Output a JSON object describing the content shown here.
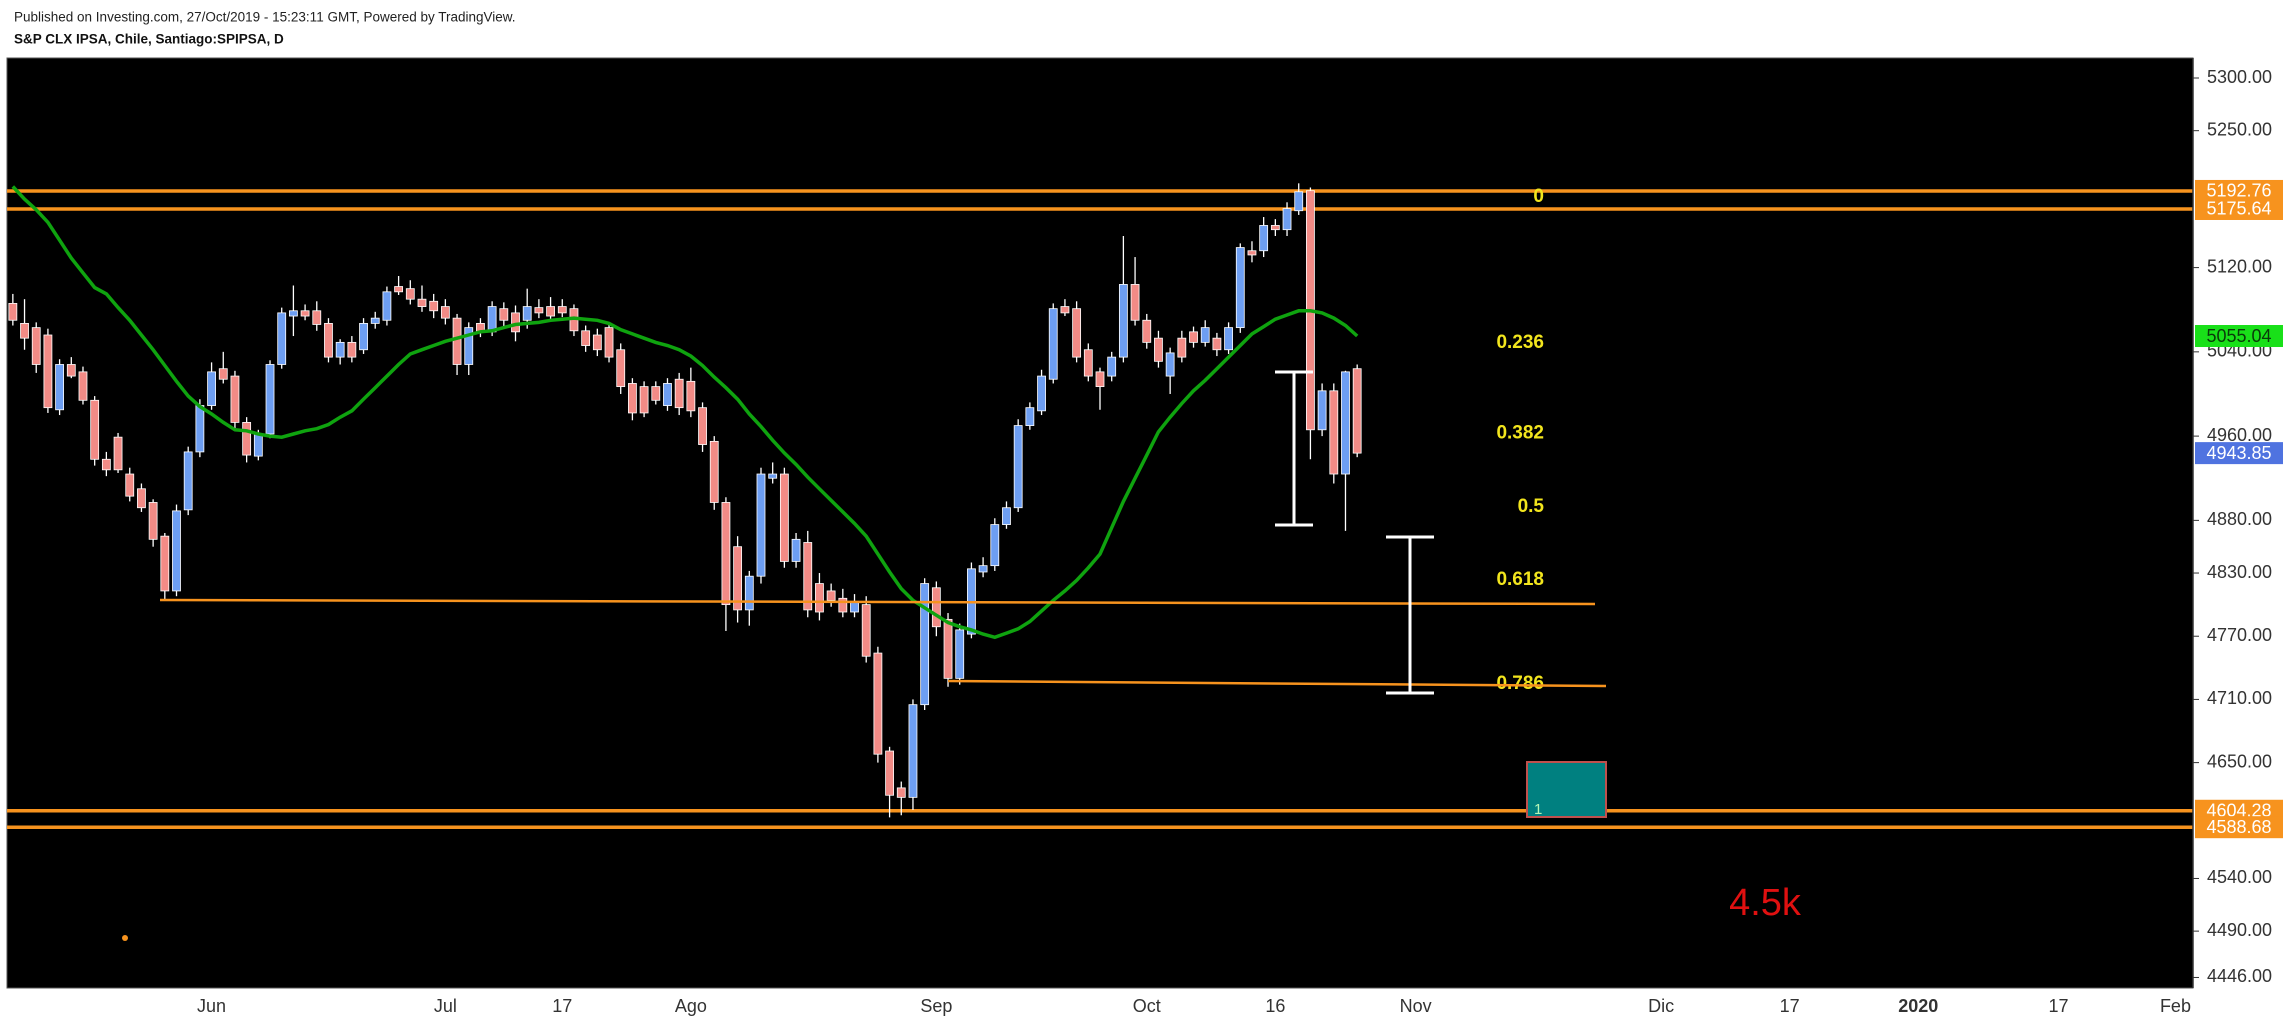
{
  "header": {
    "published": "Published on Investing.com, 27/Oct/2019 - 15:23:11 GMT, Powered by TradingView.",
    "symbol": "S&P CLX IPSA, Chile, Santiago:SPIPSA, D"
  },
  "chart_data": {
    "type": "candlestick",
    "ylim": [
      4436,
      5319
    ],
    "yticks": [
      {
        "value": 5300,
        "label": "5300.00"
      },
      {
        "value": 5250,
        "label": "5250.00"
      },
      {
        "value": 5120,
        "label": "5120.00"
      },
      {
        "value": 5040,
        "label": "5040.00"
      },
      {
        "value": 4960,
        "label": "4960.00"
      },
      {
        "value": 4880,
        "label": "4880.00"
      },
      {
        "value": 4830,
        "label": "4830.00"
      },
      {
        "value": 4770,
        "label": "4770.00"
      },
      {
        "value": 4710,
        "label": "4710.00"
      },
      {
        "value": 4650,
        "label": "4650.00"
      },
      {
        "value": 4540,
        "label": "4540.00"
      },
      {
        "value": 4490,
        "label": "4490.00"
      },
      {
        "value": 4446,
        "label": "4446.00"
      }
    ],
    "up_color": "#6d9ef2",
    "down_color": "#f28b86",
    "sma_color": "#0fa30f",
    "level_color": "#f7931e",
    "fib_color": "#f2e51d",
    "categories": [
      null,
      null,
      null,
      null,
      null,
      null,
      null,
      null,
      null,
      null,
      null,
      null,
      null,
      null,
      null,
      null,
      null,
      "Jun",
      null,
      null,
      null,
      null,
      null,
      null,
      null,
      null,
      null,
      null,
      null,
      null,
      null,
      null,
      null,
      null,
      null,
      null,
      null,
      "Jul",
      null,
      null,
      null,
      null,
      null,
      null,
      null,
      null,
      null,
      "17",
      null,
      null,
      null,
      null,
      null,
      null,
      null,
      null,
      null,
      null,
      "Ago",
      null,
      null,
      null,
      null,
      null,
      null,
      null,
      null,
      null,
      null,
      null,
      null,
      null,
      null,
      null,
      null,
      null,
      null,
      null,
      null,
      "Sep",
      null,
      null,
      null,
      null,
      null,
      null,
      null,
      null,
      null,
      null,
      null,
      null,
      null,
      null,
      null,
      null,
      null,
      "Oct",
      null,
      null,
      null,
      null,
      null,
      null,
      null,
      null,
      null,
      null,
      "16",
      null,
      null,
      null,
      null,
      null,
      null,
      null,
      null,
      null,
      null,
      null,
      "Nov",
      null,
      null,
      null,
      null,
      null,
      null,
      null,
      null,
      null,
      null,
      null,
      null,
      null,
      null,
      null,
      null,
      null,
      null,
      null,
      null,
      "Dic",
      null,
      null,
      null,
      null,
      null,
      null,
      null,
      null,
      null,
      null,
      "17",
      null,
      null,
      null,
      null,
      null,
      null,
      null,
      null,
      null,
      null,
      "2020",
      null,
      null,
      null,
      null,
      null,
      null,
      null,
      null,
      null,
      null,
      null,
      "17",
      null,
      null,
      null,
      null,
      null,
      null,
      null,
      null,
      null,
      "Feb",
      null
    ],
    "ohlc": [
      [
        5086,
        5095,
        5065,
        5070
      ],
      [
        5067,
        5090,
        5042,
        5053
      ],
      [
        5063,
        5068,
        5020,
        5028
      ],
      [
        5056,
        5062,
        4982,
        4987
      ],
      [
        4985,
        5033,
        4980,
        5028
      ],
      [
        5028,
        5035,
        5015,
        5017
      ],
      [
        5021,
        5026,
        4990,
        4994
      ],
      [
        4994,
        4998,
        4932,
        4938
      ],
      [
        4938,
        4945,
        4922,
        4928
      ],
      [
        4959,
        4963,
        4925,
        4928
      ],
      [
        4924,
        4930,
        4898,
        4903
      ],
      [
        4910,
        4915,
        4888,
        4892
      ],
      [
        4897,
        4900,
        4855,
        4862
      ],
      [
        4865,
        4868,
        4805,
        4813
      ],
      [
        4813,
        4895,
        4808,
        4889
      ],
      [
        4890,
        4950,
        4885,
        4945
      ],
      [
        4945,
        4995,
        4940,
        4989
      ],
      [
        4989,
        5030,
        4985,
        5021
      ],
      [
        5024,
        5040,
        5010,
        5014
      ],
      [
        5017,
        5022,
        4965,
        4973
      ],
      [
        4973,
        4978,
        4935,
        4942
      ],
      [
        4941,
        4966,
        4937,
        4962
      ],
      [
        4962,
        5032,
        4958,
        5028
      ],
      [
        5028,
        5082,
        5024,
        5077
      ],
      [
        5074,
        5103,
        5055,
        5079
      ],
      [
        5079,
        5085,
        5070,
        5074
      ],
      [
        5079,
        5088,
        5060,
        5066
      ],
      [
        5067,
        5072,
        5030,
        5035
      ],
      [
        5035,
        5052,
        5028,
        5049
      ],
      [
        5049,
        5055,
        5030,
        5035
      ],
      [
        5042,
        5072,
        5038,
        5067
      ],
      [
        5067,
        5078,
        5062,
        5072
      ],
      [
        5070,
        5102,
        5065,
        5097
      ],
      [
        5102,
        5112,
        5094,
        5097
      ],
      [
        5100,
        5108,
        5085,
        5090
      ],
      [
        5090,
        5103,
        5078,
        5083
      ],
      [
        5088,
        5095,
        5072,
        5079
      ],
      [
        5083,
        5090,
        5066,
        5072
      ],
      [
        5072,
        5076,
        5018,
        5028
      ],
      [
        5028,
        5068,
        5018,
        5063
      ],
      [
        5067,
        5072,
        5054,
        5059
      ],
      [
        5059,
        5088,
        5055,
        5083
      ],
      [
        5081,
        5087,
        5064,
        5070
      ],
      [
        5077,
        5084,
        5050,
        5059
      ],
      [
        5070,
        5100,
        5062,
        5083
      ],
      [
        5082,
        5090,
        5072,
        5077
      ],
      [
        5083,
        5092,
        5070,
        5074
      ],
      [
        5083,
        5090,
        5073,
        5077
      ],
      [
        5081,
        5085,
        5055,
        5060
      ],
      [
        5060,
        5065,
        5040,
        5046
      ],
      [
        5056,
        5062,
        5036,
        5042
      ],
      [
        5063,
        5068,
        5030,
        5035
      ],
      [
        5042,
        5048,
        5000,
        5007
      ],
      [
        5010,
        5015,
        4975,
        4982
      ],
      [
        5007,
        5012,
        4978,
        4982
      ],
      [
        5007,
        5012,
        4990,
        4994
      ],
      [
        4989,
        5015,
        4984,
        5010
      ],
      [
        5014,
        5020,
        4980,
        4987
      ],
      [
        5012,
        5025,
        4978,
        4984
      ],
      [
        4987,
        4992,
        4945,
        4952
      ],
      [
        4955,
        4960,
        4890,
        4897
      ],
      [
        4897,
        4902,
        4775,
        4800
      ],
      [
        4855,
        4865,
        4783,
        4795
      ],
      [
        4795,
        4832,
        4780,
        4827
      ],
      [
        4827,
        4930,
        4820,
        4924
      ],
      [
        4920,
        4935,
        4915,
        4924
      ],
      [
        4924,
        4930,
        4835,
        4841
      ],
      [
        4841,
        4868,
        4835,
        4862
      ],
      [
        4859,
        4870,
        4788,
        4795
      ],
      [
        4820,
        4830,
        4785,
        4793
      ],
      [
        4813,
        4820,
        4798,
        4804
      ],
      [
        4806,
        4815,
        4788,
        4793
      ],
      [
        4793,
        4810,
        4788,
        4802
      ],
      [
        4800,
        4808,
        4745,
        4751
      ],
      [
        4754,
        4760,
        4650,
        4658
      ],
      [
        4661,
        4665,
        4598,
        4619
      ],
      [
        4626,
        4632,
        4600,
        4617
      ],
      [
        4617,
        4710,
        4605,
        4705
      ],
      [
        4705,
        4825,
        4700,
        4820
      ],
      [
        4816,
        4822,
        4770,
        4779
      ],
      [
        4786,
        4792,
        4722,
        4730
      ],
      [
        4730,
        4782,
        4724,
        4776
      ],
      [
        4772,
        4840,
        4768,
        4834
      ],
      [
        4831,
        4845,
        4826,
        4837
      ],
      [
        4837,
        4882,
        4832,
        4876
      ],
      [
        4876,
        4898,
        4872,
        4892
      ],
      [
        4892,
        4976,
        4888,
        4970
      ],
      [
        4970,
        4992,
        4966,
        4987
      ],
      [
        4984,
        5023,
        4980,
        5017
      ],
      [
        5014,
        5086,
        5010,
        5081
      ],
      [
        5083,
        5090,
        5074,
        5077
      ],
      [
        5081,
        5088,
        5030,
        5035
      ],
      [
        5042,
        5048,
        5012,
        5017
      ],
      [
        5021,
        5025,
        4985,
        5007
      ],
      [
        5017,
        5040,
        5012,
        5035
      ],
      [
        5035,
        5150,
        5030,
        5104
      ],
      [
        5104,
        5130,
        5065,
        5070
      ],
      [
        5070,
        5076,
        5043,
        5049
      ],
      [
        5053,
        5060,
        5025,
        5031
      ],
      [
        5017,
        5044,
        5000,
        5039
      ],
      [
        5053,
        5060,
        5030,
        5035
      ],
      [
        5059,
        5064,
        5044,
        5049
      ],
      [
        5049,
        5070,
        5045,
        5063
      ],
      [
        5053,
        5058,
        5036,
        5042
      ],
      [
        5042,
        5068,
        5038,
        5063
      ],
      [
        5063,
        5143,
        5058,
        5139
      ],
      [
        5136,
        5145,
        5125,
        5132
      ],
      [
        5136,
        5168,
        5130,
        5160
      ],
      [
        5160,
        5166,
        5150,
        5156
      ],
      [
        5156,
        5182,
        5150,
        5176
      ],
      [
        5174,
        5200,
        5170,
        5192
      ],
      [
        5193,
        5196,
        4938,
        4966
      ],
      [
        4966,
        5010,
        4960,
        5003
      ],
      [
        5003,
        5010,
        4915,
        4924
      ],
      [
        4924,
        5022,
        4870,
        5021
      ],
      [
        5024,
        5028,
        4940,
        4943.85
      ],
      null,
      null,
      null,
      null,
      null,
      null,
      null,
      null,
      null,
      null,
      null,
      null,
      null,
      null,
      null,
      null,
      null,
      null,
      null,
      null,
      null,
      null,
      null,
      null,
      null,
      null,
      null,
      null,
      null,
      null,
      null,
      null,
      null,
      null,
      null,
      null,
      null,
      null,
      null,
      null,
      null,
      null,
      null,
      null,
      null,
      null,
      null,
      null,
      null,
      null,
      null,
      null,
      null,
      null,
      null,
      null,
      null,
      null,
      null,
      null,
      null,
      null,
      null,
      null,
      null,
      null,
      null,
      null,
      null,
      null,
      null
    ],
    "sma": [
      5197,
      5185,
      5175,
      5163,
      5146,
      5129,
      5115,
      5101,
      5095,
      5082,
      5070,
      5056,
      5042,
      5027,
      5012,
      4998,
      4988,
      4981,
      4973,
      4966,
      4965,
      4962,
      4960,
      4959,
      4962,
      4965,
      4967,
      4971,
      4978,
      4984,
      4995,
      5006,
      5017,
      5028,
      5038,
      5042,
      5046,
      5050,
      5053,
      5056,
      5059,
      5060,
      5063,
      5066,
      5067,
      5068,
      5070,
      5071,
      5072,
      5071,
      5070,
      5067,
      5061,
      5057,
      5053,
      5049,
      5046,
      5042,
      5036,
      5027,
      5016,
      5006,
      4995,
      4981,
      4969,
      4956,
      4944,
      4933,
      4921,
      4910,
      4899,
      4888,
      4877,
      4865,
      4848,
      4831,
      4815,
      4804,
      4797,
      4790,
      4783,
      4779,
      4776,
      4772,
      4769,
      4773,
      4777,
      4784,
      4794,
      4804,
      4813,
      4823,
      4835,
      4848,
      4873,
      4898,
      4920,
      4942,
      4964,
      4978,
      4991,
      5003,
      5013,
      5024,
      5035,
      5046,
      5057,
      5064,
      5071,
      5075,
      5079,
      5079,
      5077,
      5072,
      5065,
      5055.04,
      null,
      null,
      null,
      null,
      null,
      null,
      null,
      null,
      null,
      null,
      null,
      null,
      null,
      null,
      null,
      null,
      null,
      null,
      null,
      null,
      null,
      null,
      null,
      null,
      null,
      null,
      null,
      null,
      null,
      null,
      null,
      null,
      null,
      null,
      null,
      null,
      null,
      null,
      null,
      null,
      null,
      null,
      null,
      null,
      null,
      null,
      null,
      null,
      null,
      null,
      null,
      null,
      null,
      null,
      null,
      null,
      null,
      null,
      null,
      null,
      null,
      null,
      null,
      null,
      null,
      null,
      null,
      null,
      null,
      null,
      null
    ],
    "hlines": [
      5192.76,
      5175.64,
      4604.28,
      4588.68
    ],
    "fib_levels": [
      0,
      0.236,
      0.382,
      0.5,
      0.618,
      0.786
    ],
    "annotations": {
      "target": "4.5k",
      "box": "1"
    }
  }
}
